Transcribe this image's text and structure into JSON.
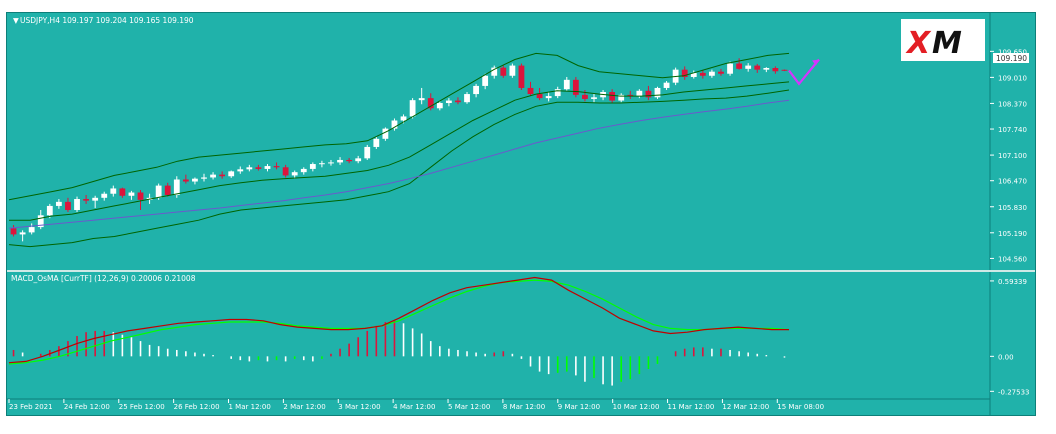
{
  "colors": {
    "background": "#20b2aa",
    "bull_candle": "#ffffff",
    "bear_candle": "#dc143c",
    "bands": "#006400",
    "moving_average": "#6a5acd",
    "macd_line": "#c00000",
    "signal_line": "#00ff00",
    "forecast_arrow": "#d633ff",
    "price_label_bg": "#ffffff"
  },
  "chart_data": [
    {
      "type": "candlestick",
      "title": "USDJPY,H4  109.197 109.204 109.165 109.190",
      "symbol": "USDJPY,H4",
      "ohlc_header": "109.197 109.204 109.165 109.190",
      "current_price_label": "109.190",
      "ylim": [
        104.3,
        110.15
      ],
      "y_ticks": [
        "109.650",
        "109.010",
        "108.370",
        "107.740",
        "107.100",
        "106.470",
        "105.830",
        "105.190",
        "104.560"
      ],
      "x_ticks": [
        "23 Feb 2021",
        "24 Feb 12:00",
        "25 Feb 12:00",
        "26 Feb 12:00",
        "1 Mar 12:00",
        "2 Mar 12:00",
        "3 Mar 12:00",
        "4 Mar 12:00",
        "5 Mar 12:00",
        "8 Mar 12:00",
        "9 Mar 12:00",
        "10 Mar 12:00",
        "11 Mar 12:00",
        "12 Mar 12:00",
        "15 Mar 08:00"
      ],
      "candles": [
        [
          105.3,
          105.38,
          105.1,
          105.15
        ],
        [
          105.15,
          105.25,
          104.98,
          105.2
        ],
        [
          105.2,
          105.42,
          105.15,
          105.33
        ],
        [
          105.33,
          105.75,
          105.28,
          105.62
        ],
        [
          105.62,
          105.9,
          105.55,
          105.85
        ],
        [
          105.85,
          106.02,
          105.78,
          105.95
        ],
        [
          105.95,
          106.05,
          105.7,
          105.75
        ],
        [
          105.75,
          106.08,
          105.7,
          106.02
        ],
        [
          106.02,
          106.12,
          105.9,
          105.98
        ],
        [
          105.98,
          106.1,
          105.8,
          106.05
        ],
        [
          106.05,
          106.2,
          105.98,
          106.15
        ],
        [
          106.15,
          106.35,
          106.08,
          106.28
        ],
        [
          106.28,
          106.3,
          106.05,
          106.1
        ],
        [
          106.1,
          106.22,
          106.0,
          106.18
        ],
        [
          106.18,
          106.24,
          105.75,
          106.0
        ],
        [
          106.0,
          106.15,
          105.9,
          106.05
        ],
        [
          106.05,
          106.4,
          106.0,
          106.35
        ],
        [
          106.35,
          106.42,
          106.08,
          106.12
        ],
        [
          106.12,
          106.58,
          106.05,
          106.5
        ],
        [
          106.5,
          106.62,
          106.4,
          106.45
        ],
        [
          106.45,
          106.55,
          106.38,
          106.52
        ],
        [
          106.52,
          106.64,
          106.45,
          106.55
        ],
        [
          106.55,
          106.68,
          106.5,
          106.62
        ],
        [
          106.62,
          106.7,
          106.52,
          106.58
        ],
        [
          106.58,
          106.72,
          106.54,
          106.7
        ],
        [
          106.7,
          106.82,
          106.64,
          106.75
        ],
        [
          106.75,
          106.86,
          106.7,
          106.8
        ],
        [
          106.8,
          106.86,
          106.72,
          106.76
        ],
        [
          106.76,
          106.88,
          106.7,
          106.83
        ],
        [
          106.83,
          106.92,
          106.75,
          106.8
        ],
        [
          106.8,
          106.86,
          106.55,
          106.6
        ],
        [
          106.6,
          106.72,
          106.52,
          106.68
        ],
        [
          106.68,
          106.8,
          106.62,
          106.76
        ],
        [
          106.76,
          106.92,
          106.7,
          106.88
        ],
        [
          106.88,
          106.96,
          106.8,
          106.9
        ],
        [
          106.9,
          106.98,
          106.84,
          106.92
        ],
        [
          106.92,
          107.05,
          106.86,
          106.98
        ],
        [
          106.98,
          107.03,
          106.9,
          106.95
        ],
        [
          106.95,
          107.08,
          106.9,
          107.02
        ],
        [
          107.02,
          107.35,
          106.98,
          107.3
        ],
        [
          107.3,
          107.55,
          107.25,
          107.5
        ],
        [
          107.5,
          107.78,
          107.45,
          107.75
        ],
        [
          107.75,
          108.0,
          107.7,
          107.95
        ],
        [
          107.95,
          108.1,
          107.88,
          108.05
        ],
        [
          108.05,
          108.5,
          108.0,
          108.45
        ],
        [
          108.45,
          108.75,
          108.35,
          108.5
        ],
        [
          108.5,
          108.62,
          108.2,
          108.25
        ],
        [
          108.25,
          108.42,
          108.2,
          108.38
        ],
        [
          108.38,
          108.5,
          108.3,
          108.44
        ],
        [
          108.44,
          108.52,
          108.35,
          108.4
        ],
        [
          108.4,
          108.65,
          108.36,
          108.6
        ],
        [
          108.6,
          108.85,
          108.52,
          108.8
        ],
        [
          108.8,
          109.1,
          108.72,
          109.05
        ],
        [
          109.05,
          109.3,
          108.98,
          109.25
        ],
        [
          109.25,
          109.3,
          109.0,
          109.05
        ],
        [
          109.05,
          109.35,
          109.0,
          109.3
        ],
        [
          109.3,
          109.35,
          108.7,
          108.75
        ],
        [
          108.75,
          108.9,
          108.55,
          108.6
        ],
        [
          108.6,
          108.75,
          108.45,
          108.5
        ],
        [
          108.5,
          108.65,
          108.42,
          108.55
        ],
        [
          108.55,
          108.78,
          108.5,
          108.72
        ],
        [
          108.72,
          109.02,
          108.68,
          108.95
        ],
        [
          108.95,
          109.02,
          108.52,
          108.58
        ],
        [
          108.58,
          108.7,
          108.42,
          108.48
        ],
        [
          108.48,
          108.6,
          108.4,
          108.52
        ],
        [
          108.52,
          108.7,
          108.45,
          108.65
        ],
        [
          108.65,
          108.72,
          108.38,
          108.44
        ],
        [
          108.44,
          108.62,
          108.4,
          108.58
        ],
        [
          108.58,
          108.68,
          108.48,
          108.55
        ],
        [
          108.55,
          108.72,
          108.5,
          108.68
        ],
        [
          108.68,
          108.8,
          108.45,
          108.52
        ],
        [
          108.52,
          108.78,
          108.48,
          108.75
        ],
        [
          108.75,
          108.92,
          108.7,
          108.88
        ],
        [
          108.88,
          109.25,
          108.82,
          109.2
        ],
        [
          109.2,
          109.28,
          108.95,
          109.02
        ],
        [
          109.02,
          109.18,
          108.98,
          109.12
        ],
        [
          109.12,
          109.18,
          108.98,
          109.05
        ],
        [
          109.05,
          109.2,
          109.0,
          109.15
        ],
        [
          109.15,
          109.22,
          109.05,
          109.1
        ],
        [
          109.1,
          109.4,
          109.05,
          109.35
        ],
        [
          109.35,
          109.48,
          109.2,
          109.22
        ],
        [
          109.22,
          109.36,
          109.15,
          109.3
        ],
        [
          109.3,
          109.34,
          109.12,
          109.2
        ],
        [
          109.2,
          109.26,
          109.14,
          109.24
        ],
        [
          109.24,
          109.28,
          109.1,
          109.16
        ],
        [
          109.197,
          109.204,
          109.165,
          109.19
        ]
      ],
      "bb_upper": [
        106.0,
        106.1,
        106.2,
        106.3,
        106.45,
        106.6,
        106.7,
        106.8,
        106.95,
        107.05,
        107.1,
        107.15,
        107.2,
        107.25,
        107.3,
        107.35,
        107.38,
        107.45,
        107.7,
        108.0,
        108.3,
        108.6,
        108.9,
        109.2,
        109.45,
        109.6,
        109.55,
        109.3,
        109.15,
        109.1,
        109.05,
        109.0,
        109.05,
        109.2,
        109.35,
        109.45,
        109.55,
        109.6
      ],
      "bb_middle": [
        105.5,
        105.5,
        105.6,
        105.65,
        105.75,
        105.85,
        105.95,
        106.05,
        106.15,
        106.25,
        106.35,
        106.42,
        106.48,
        106.52,
        106.55,
        106.58,
        106.65,
        106.72,
        106.85,
        107.05,
        107.35,
        107.65,
        107.95,
        108.2,
        108.45,
        108.6,
        108.68,
        108.66,
        108.6,
        108.55,
        108.55,
        108.58,
        108.65,
        108.7,
        108.75,
        108.8,
        108.85,
        108.9
      ],
      "bb_lower": [
        104.9,
        104.85,
        104.9,
        104.95,
        105.05,
        105.1,
        105.2,
        105.3,
        105.4,
        105.5,
        105.65,
        105.75,
        105.8,
        105.85,
        105.9,
        105.95,
        106.0,
        106.1,
        106.2,
        106.4,
        106.8,
        107.2,
        107.55,
        107.85,
        108.1,
        108.3,
        108.4,
        108.4,
        108.38,
        108.38,
        108.4,
        108.42,
        108.45,
        108.48,
        108.5,
        108.55,
        108.62,
        108.7
      ],
      "moving_average": [
        105.3,
        105.35,
        105.4,
        105.45,
        105.5,
        105.55,
        105.6,
        105.65,
        105.7,
        105.75,
        105.8,
        105.86,
        105.92,
        105.98,
        106.05,
        106.12,
        106.2,
        106.3,
        106.4,
        106.52,
        106.65,
        106.8,
        106.95,
        107.1,
        107.25,
        107.4,
        107.52,
        107.64,
        107.76,
        107.86,
        107.95,
        108.03,
        108.1,
        108.17,
        108.23,
        108.3,
        108.38,
        108.45
      ],
      "forecast": [
        [
          109.18,
          0
        ],
        [
          108.85,
          2
        ],
        [
          109.45,
          6
        ]
      ]
    },
    {
      "type": "macd",
      "title": "MACD_OsMA [CurrTF] (12,26,9) 0.20006 0.21008",
      "label": "MACD_OsMA [CurrTF] (12,26,9)",
      "values_text": "0.20006 0.21008",
      "ylim": [
        -0.32,
        0.64
      ],
      "y_ticks": [
        "0.59339",
        "0.00",
        "-0.27533"
      ],
      "macd": [
        -0.05,
        -0.04,
        0.0,
        0.05,
        0.1,
        0.14,
        0.17,
        0.2,
        0.22,
        0.24,
        0.26,
        0.27,
        0.28,
        0.29,
        0.29,
        0.28,
        0.25,
        0.23,
        0.22,
        0.21,
        0.21,
        0.22,
        0.24,
        0.3,
        0.37,
        0.44,
        0.5,
        0.54,
        0.56,
        0.58,
        0.6,
        0.62,
        0.6,
        0.52,
        0.45,
        0.38,
        0.3,
        0.25,
        0.2,
        0.18,
        0.19,
        0.21,
        0.22,
        0.23,
        0.22,
        0.21,
        0.21
      ],
      "signal": [
        -0.06,
        -0.05,
        -0.03,
        0.0,
        0.04,
        0.08,
        0.12,
        0.15,
        0.18,
        0.21,
        0.23,
        0.25,
        0.26,
        0.27,
        0.27,
        0.27,
        0.26,
        0.24,
        0.23,
        0.22,
        0.22,
        0.22,
        0.24,
        0.28,
        0.34,
        0.4,
        0.46,
        0.51,
        0.55,
        0.58,
        0.59,
        0.6,
        0.59,
        0.56,
        0.51,
        0.45,
        0.38,
        0.31,
        0.25,
        0.22,
        0.21,
        0.21,
        0.22,
        0.22,
        0.22,
        0.22,
        0.21
      ],
      "histogram": [
        0.05,
        0.03,
        0.0,
        0.02,
        0.05,
        0.08,
        0.12,
        0.16,
        0.19,
        0.2,
        0.2,
        0.19,
        0.17,
        0.15,
        0.12,
        0.09,
        0.08,
        0.06,
        0.05,
        0.04,
        0.03,
        0.02,
        0.01,
        0.0,
        -0.02,
        -0.03,
        -0.04,
        -0.03,
        -0.04,
        -0.03,
        -0.04,
        -0.02,
        -0.03,
        -0.04,
        -0.02,
        0.02,
        0.06,
        0.1,
        0.15,
        0.2,
        0.24,
        0.27,
        0.28,
        0.26,
        0.22,
        0.18,
        0.12,
        0.08,
        0.06,
        0.05,
        0.04,
        0.03,
        0.02,
        0.03,
        0.04,
        0.02,
        -0.02,
        -0.08,
        -0.12,
        -0.14,
        -0.13,
        -0.12,
        -0.15,
        -0.2,
        -0.17,
        -0.22,
        -0.23,
        -0.2,
        -0.18,
        -0.14,
        -0.1,
        -0.06,
        0.0,
        0.04,
        0.06,
        0.07,
        0.07,
        0.06,
        0.06,
        0.05,
        0.04,
        0.03,
        0.02,
        0.01,
        0.0,
        -0.01
      ]
    }
  ]
}
